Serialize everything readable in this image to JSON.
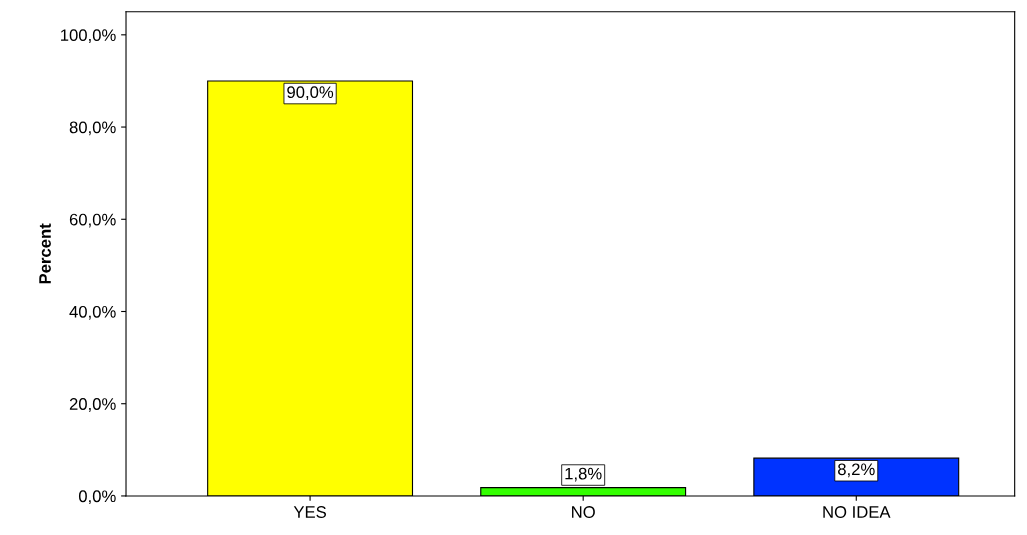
{
  "chart_data": {
    "type": "bar",
    "ylabel": "Percent",
    "categories": [
      "YES",
      "NO",
      "NO IDEA"
    ],
    "values": [
      90.0,
      1.8,
      8.2
    ],
    "colors": [
      "#ffff00",
      "#33ff00",
      "#0033ff"
    ],
    "value_labels": [
      "90,0%",
      "1,8%",
      "8,2%"
    ],
    "ylim": [
      0,
      105
    ],
    "yticks": [
      {
        "value": 0,
        "label": "0,0%"
      },
      {
        "value": 20,
        "label": "20,0%"
      },
      {
        "value": 40,
        "label": "40,0%"
      },
      {
        "value": 60,
        "label": "60,0%"
      },
      {
        "value": 80,
        "label": "80,0%"
      },
      {
        "value": 100,
        "label": "100,0%"
      }
    ],
    "grid": false
  }
}
